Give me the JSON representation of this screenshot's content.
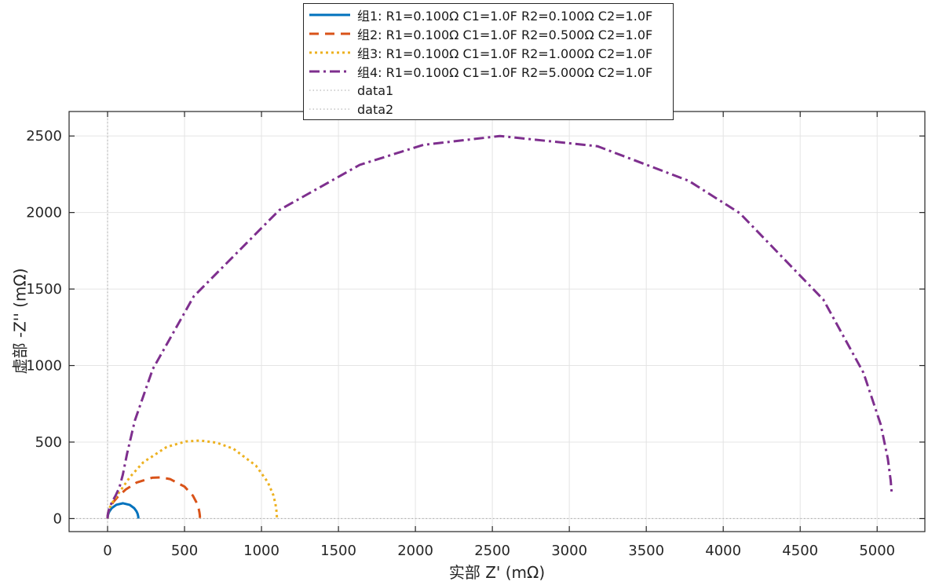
{
  "chart_data": {
    "type": "line",
    "title": "",
    "xlabel": "实部 Z' (mΩ)",
    "ylabel": "虚部 -Z'' (mΩ)",
    "xlim": [
      -250,
      5310
    ],
    "ylim": [
      -85,
      2660
    ],
    "xticks": [
      0,
      500,
      1000,
      1500,
      2000,
      2500,
      3000,
      3500,
      4000,
      4500,
      5000
    ],
    "yticks": [
      0,
      500,
      1000,
      1500,
      2000,
      2500
    ],
    "grid": true,
    "legend_position": "top-center",
    "series": [
      {
        "name": "组1: R1=0.100Ω C1=1.0F R2=0.100Ω C2=1.0F",
        "color": "#0072BD",
        "style": "solid",
        "points": [
          [
            0,
            0.3
          ],
          [
            0.1,
            2
          ],
          [
            0.3,
            8
          ],
          [
            0.8,
            12.6
          ],
          [
            2,
            19.9
          ],
          [
            4.9,
            31.1
          ],
          [
            12,
            47.5
          ],
          [
            27.6,
            69
          ],
          [
            57.4,
            90.5
          ],
          [
            100.5,
            100
          ],
          [
            143.5,
            90.1
          ],
          [
            172.9,
            68.5
          ],
          [
            188.2,
            47.1
          ],
          [
            195.1,
            30.8
          ],
          [
            198,
            19.7
          ],
          [
            199.2,
            12.5
          ],
          [
            199.8,
            7.9
          ],
          [
            200,
            3.2
          ],
          [
            200,
            0.1
          ]
        ]
      },
      {
        "name": "组2: R1=0.100Ω C1=1.0F R2=0.500Ω C2=1.0F",
        "color": "#D95319",
        "style": "dashed",
        "points": [
          [
            0,
            0.3
          ],
          [
            0.1,
            4.5
          ],
          [
            0.3,
            8
          ],
          [
            1.1,
            20
          ],
          [
            2.9,
            31.4
          ],
          [
            7,
            49
          ],
          [
            17,
            74
          ],
          [
            37,
            108
          ],
          [
            70,
            146.6
          ],
          [
            118,
            190
          ],
          [
            188,
            235
          ],
          [
            289,
            267
          ],
          [
            346,
            269
          ],
          [
            406,
            258.5
          ],
          [
            500,
            209
          ],
          [
            555,
            149
          ],
          [
            581,
            99
          ],
          [
            592,
            64
          ],
          [
            597,
            41
          ],
          [
            599,
            25.8
          ],
          [
            600,
            16.4
          ],
          [
            600,
            6.5
          ],
          [
            600,
            0.9
          ]
        ]
      },
      {
        "name": "组3: R1=0.100Ω C1=1.0F R2=1.000Ω C2=1.0F",
        "color": "#EDB120",
        "style": "dotted",
        "points": [
          [
            0,
            0.3
          ],
          [
            0.1,
            4.5
          ],
          [
            0.4,
            12.6
          ],
          [
            1,
            20
          ],
          [
            2.7,
            31.4
          ],
          [
            6.6,
            49
          ],
          [
            15,
            74
          ],
          [
            33,
            108
          ],
          [
            60,
            150
          ],
          [
            96,
            200
          ],
          [
            146,
            272
          ],
          [
            232,
            368
          ],
          [
            384,
            468
          ],
          [
            508,
            504
          ],
          [
            602,
            510
          ],
          [
            709,
            496
          ],
          [
            817,
            457
          ],
          [
            964,
            346
          ],
          [
            1041,
            238
          ],
          [
            1076,
            155
          ],
          [
            1090,
            99.5
          ],
          [
            1096,
            63
          ],
          [
            1099,
            25
          ],
          [
            1100,
            6.3
          ]
        ]
      },
      {
        "name": "组4: R1=0.100Ω C1=1.0F R2=5.000Ω C2=1.0F",
        "color": "#7E2F8E",
        "style": "dashdot",
        "points": [
          [
            0,
            0.3
          ],
          [
            0.1,
            4.5
          ],
          [
            0.4,
            12.7
          ],
          [
            1,
            20
          ],
          [
            2.6,
            31.5
          ],
          [
            6,
            49
          ],
          [
            14,
            74
          ],
          [
            29,
            109
          ],
          [
            52,
            150
          ],
          [
            77,
            204
          ],
          [
            99,
            286
          ],
          [
            126,
            421
          ],
          [
            177,
            640
          ],
          [
            293,
            976
          ],
          [
            560,
            1452
          ],
          [
            1116,
            2016
          ],
          [
            1638,
            2311
          ],
          [
            2051,
            2442
          ],
          [
            2550,
            2500
          ],
          [
            3183,
            2433
          ],
          [
            3776,
            2207
          ],
          [
            4108,
            1995
          ],
          [
            4651,
            1430
          ],
          [
            4911,
            953
          ],
          [
            5023,
            616
          ],
          [
            5069,
            392
          ],
          [
            5088,
            248
          ],
          [
            5095,
            157
          ]
        ]
      }
    ],
    "reference_lines": [
      {
        "name": "data1",
        "orientation": "horizontal",
        "value": 0,
        "color": "#a6a6a6",
        "style": "finedot"
      },
      {
        "name": "data2",
        "orientation": "vertical",
        "value": 0,
        "color": "#a6a6a6",
        "style": "finedot"
      }
    ],
    "colors": {
      "grid": "#e4e4e4",
      "frame": "#262626",
      "text": "#262626"
    }
  }
}
